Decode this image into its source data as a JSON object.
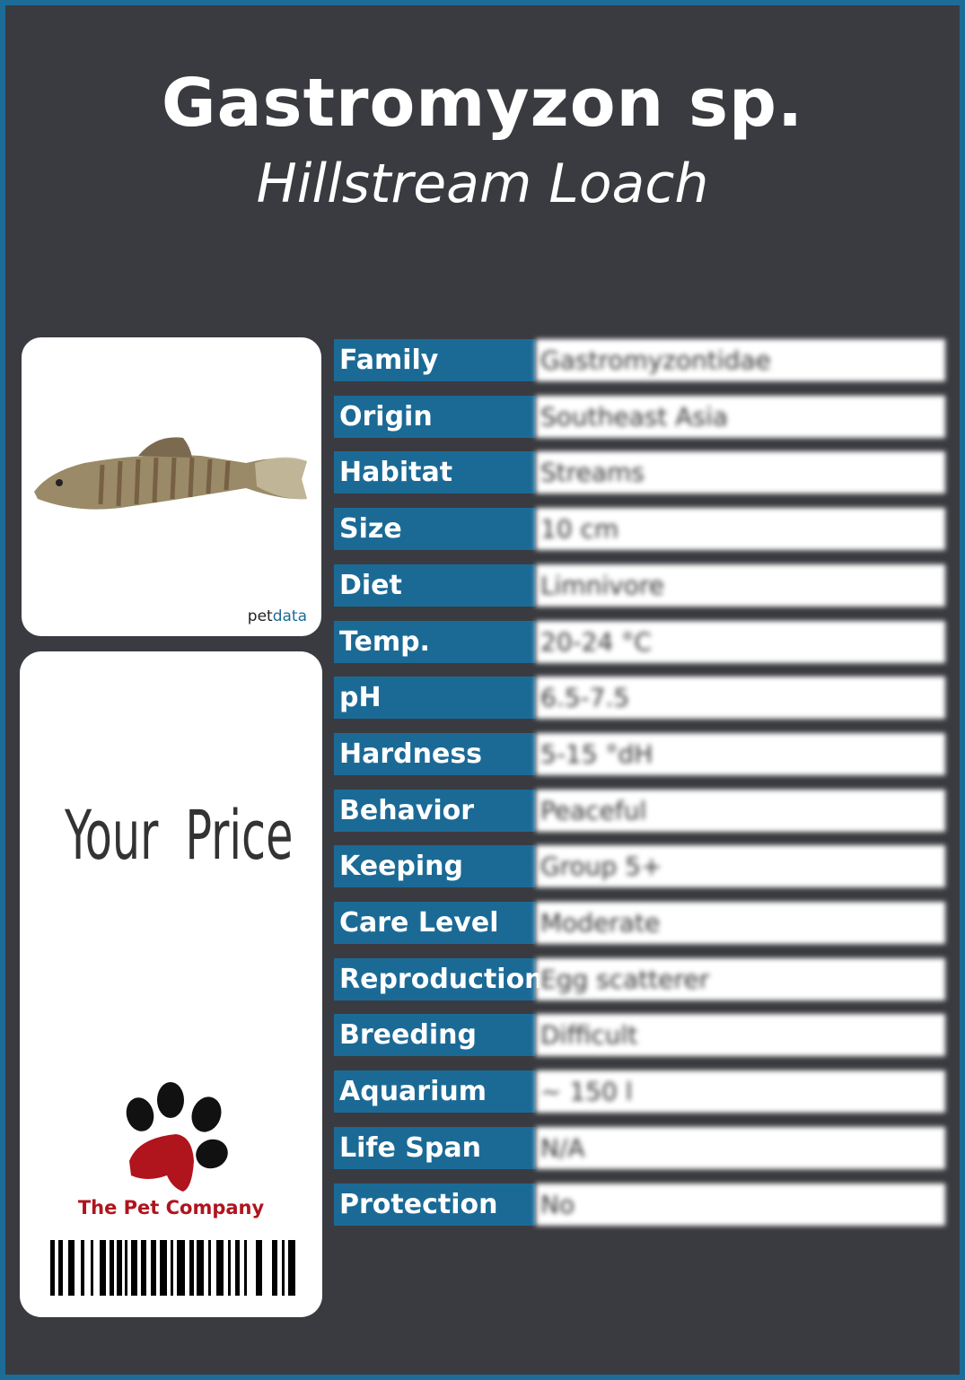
{
  "title": "Gastromyzon sp.",
  "subtitle": "Hillstream Loach",
  "photo": {
    "credit_prefix": "pet",
    "credit_suffix": "data"
  },
  "price": {
    "label": "Your Price"
  },
  "logo": {
    "company": "The Pet Company",
    "icon": "paw-icon"
  },
  "colors": {
    "frame": "#1d6c97",
    "background": "#3a3b40",
    "label_cell": "#1b6a96",
    "logo_red": "#b0141d"
  },
  "facts": [
    {
      "label": "Family",
      "value": "Gastromyzontidae"
    },
    {
      "label": "Origin",
      "value": "Southeast Asia"
    },
    {
      "label": "Habitat",
      "value": "Streams"
    },
    {
      "label": "Size",
      "value": "10 cm"
    },
    {
      "label": "Diet",
      "value": "Limnivore"
    },
    {
      "label": "Temp.",
      "value": "20-24 °C"
    },
    {
      "label": "pH",
      "value": "6.5-7.5"
    },
    {
      "label": "Hardness",
      "value": "5-15 °dH"
    },
    {
      "label": "Behavior",
      "value": "Peaceful"
    },
    {
      "label": "Keeping",
      "value": "Group 5+"
    },
    {
      "label": "Care Level",
      "value": "Moderate"
    },
    {
      "label": "Reproduction",
      "value": "Egg scatterer"
    },
    {
      "label": "Breeding",
      "value": "Difficult"
    },
    {
      "label": "Aquarium",
      "value": "~ 150 l"
    },
    {
      "label": "Life Span",
      "value": "N/A"
    },
    {
      "label": "Protection",
      "value": "No"
    }
  ]
}
